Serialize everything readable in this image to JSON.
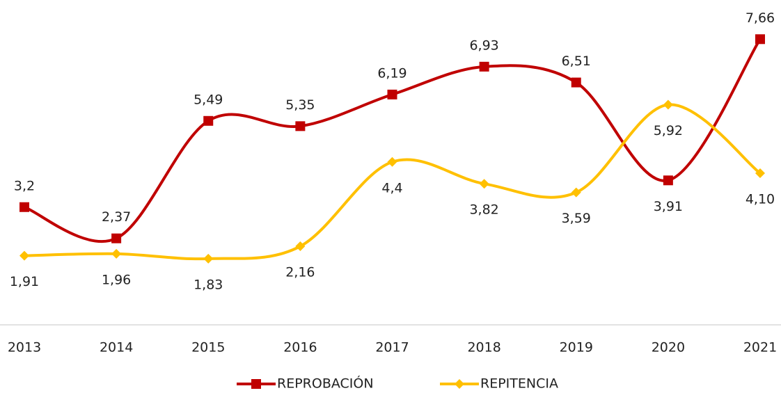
{
  "chart_data": {
    "type": "line",
    "categories": [
      "2013",
      "2014",
      "2015",
      "2016",
      "2017",
      "2018",
      "2019",
      "2020",
      "2021"
    ],
    "series": [
      {
        "name": "REPROBACIÓN",
        "color": "#c00000",
        "marker": "square",
        "values": [
          3.2,
          2.37,
          5.49,
          5.35,
          6.19,
          6.93,
          6.51,
          3.91,
          7.66
        ],
        "value_labels": [
          "3,2",
          "2,37",
          "5,49",
          "5,35",
          "6,19",
          "6,93",
          "6,51",
          "3,91",
          "7,66"
        ]
      },
      {
        "name": "REPITENCIA",
        "color": "#ffc000",
        "marker": "diamond",
        "values": [
          1.91,
          1.96,
          1.83,
          2.16,
          4.4,
          3.82,
          3.59,
          5.92,
          4.1
        ],
        "value_labels": [
          "1,91",
          "1,96",
          "1,83",
          "2,16",
          "4,4",
          "3,82",
          "3,59",
          "5,92",
          "4,10"
        ]
      }
    ],
    "ylim": [
      0,
      8.7
    ],
    "smooth": true,
    "legend": "bottom"
  }
}
